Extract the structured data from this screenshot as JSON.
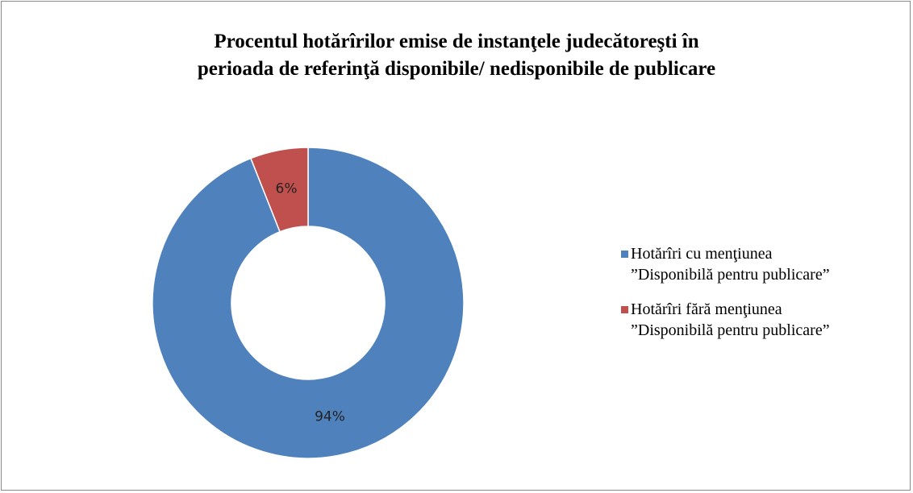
{
  "chart_data": {
    "type": "donut",
    "title": "Procentul hotărîrilor emise de instanţele judecătoreşti în\nperioada de referinţă disponibile/ nedisponibile de publicare",
    "series": [
      {
        "name": "Hotărîri cu menţiunea\n”Disponibilă pentru publicare”",
        "color": "#4f81bd",
        "values": [
          94
        ],
        "value_labels": [
          "94%"
        ]
      },
      {
        "name": "Hotărîri fără menţiunea\n”Disponibilă pentru publicare”",
        "color": "#c0504d",
        "values": [
          6
        ],
        "value_labels": [
          "6%"
        ]
      }
    ],
    "legend": "right"
  }
}
